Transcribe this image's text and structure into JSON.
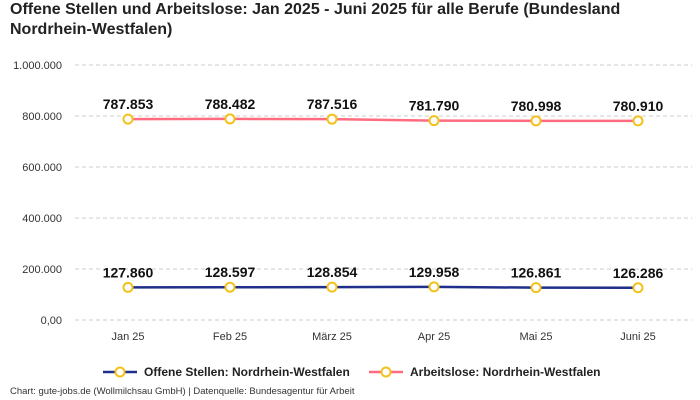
{
  "title": "Offene Stellen und Arbeitslose: Jan 2025 - Juni 2025 für alle Berufe (Bundesland Nordrhein-Westfalen)",
  "footer": "Chart: gute-jobs.de (Wollmilchsau GmbH) | Datenquelle: Bundesagentur für Arbeit",
  "colors": {
    "offene_stellen_line": "#1f2f8a",
    "arbeitslose_line": "#ff6b7f",
    "marker_stroke": "#f2c21b",
    "grid": "#cccccc"
  },
  "chart_data": {
    "type": "line",
    "title": "Offene Stellen und Arbeitslose: Jan 2025 - Juni 2025 für alle Berufe (Bundesland Nordrhein-Westfalen)",
    "xlabel": "",
    "ylabel": "",
    "categories": [
      "Jan 25",
      "Feb 25",
      "März 25",
      "Apr 25",
      "Mai 25",
      "Juni 25"
    ],
    "ylim": [
      0,
      1000000
    ],
    "yticks": [
      0,
      200000,
      400000,
      600000,
      800000,
      1000000
    ],
    "ytick_labels": [
      "0,00",
      "200.000",
      "400.000",
      "600.000",
      "800.000",
      "1.000.000"
    ],
    "grid": true,
    "legend_position": "bottom",
    "series": [
      {
        "name": "Offene Stellen: Nordrhein-Westfalen",
        "values": [
          127860,
          128597,
          128854,
          129958,
          126861,
          126286
        ],
        "labels": [
          "127.860",
          "128.597",
          "128.854",
          "129.958",
          "126.861",
          "126.286"
        ]
      },
      {
        "name": "Arbeitslose: Nordrhein-Westfalen",
        "values": [
          787853,
          788482,
          787516,
          781790,
          780998,
          780910
        ],
        "labels": [
          "787.853",
          "788.482",
          "787.516",
          "781.790",
          "780.998",
          "780.910"
        ]
      }
    ]
  }
}
